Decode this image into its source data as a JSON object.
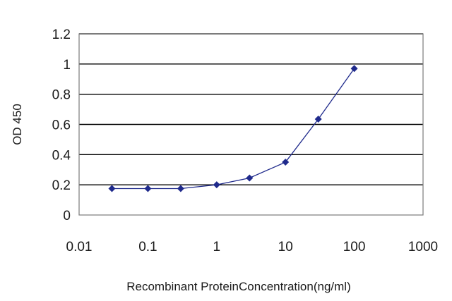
{
  "chart_data": {
    "type": "line",
    "xlabel": "Recombinant ProteinConcentration(ng/ml)",
    "ylabel": "OD 450",
    "x_scale": "log",
    "xlim": [
      0.01,
      1000
    ],
    "ylim": [
      0,
      1.2
    ],
    "x_ticks": [
      0.01,
      0.1,
      1,
      10,
      100,
      1000
    ],
    "x_tick_labels": [
      "0.01",
      "0.1",
      "1",
      "10",
      "100",
      "1000"
    ],
    "y_ticks": [
      0,
      0.2,
      0.4,
      0.6,
      0.8,
      1,
      1.2
    ],
    "y_tick_labels": [
      "0",
      "0.2",
      "0.4",
      "0.6",
      "0.8",
      "1",
      "1.2"
    ],
    "grid": "horizontal",
    "legend": "none",
    "series": [
      {
        "x": [
          0.03,
          0.1,
          0.3,
          1,
          3,
          10,
          30,
          100
        ],
        "y": [
          0.175,
          0.175,
          0.175,
          0.2,
          0.245,
          0.35,
          0.635,
          0.97
        ],
        "color": "#1f2a8c",
        "marker": "diamond"
      }
    ]
  }
}
